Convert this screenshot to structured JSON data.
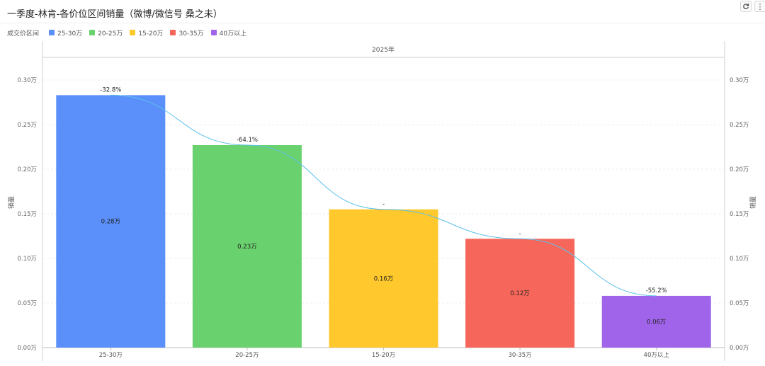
{
  "title": "一季度-林肯-各价位区间销量（微博/微信号 桑之未）",
  "toolbar": {
    "refresh_icon": "refresh-icon",
    "more_icon": "more-vertical-icon"
  },
  "legend": {
    "title": "成交价区间",
    "items": [
      {
        "label": "25-30万",
        "color": "#5B8FF9"
      },
      {
        "label": "20-25万",
        "color": "#69D16D"
      },
      {
        "label": "15-20万",
        "color": "#FFC82C"
      },
      {
        "label": "30-35万",
        "color": "#F7665A"
      },
      {
        "label": "40万以上",
        "color": "#A064EA"
      }
    ]
  },
  "chart_data": {
    "type": "bar",
    "facet_label": "2025年",
    "categories": [
      "25-30万",
      "20-25万",
      "15-20万",
      "30-35万",
      "40万以上"
    ],
    "values": [
      0.283,
      0.227,
      0.155,
      0.122,
      0.058
    ],
    "value_labels": [
      "0.28万",
      "0.23万",
      "0.16万",
      "0.12万",
      "0.06万"
    ],
    "change_labels": [
      "-32.8%",
      "-64.1%",
      "-",
      "-",
      "-55.2%"
    ],
    "colors": [
      "#5B8FF9",
      "#69D16D",
      "#FFC82C",
      "#F7665A",
      "#A064EA"
    ],
    "ylabel": "销量",
    "ylim": [
      0,
      0.3
    ],
    "yticks": [
      "0.00万",
      "0.05万",
      "0.10万",
      "0.15万",
      "0.20万",
      "0.25万",
      "0.30万"
    ],
    "trend_line_color": "#5BC0EB",
    "grid": true
  }
}
